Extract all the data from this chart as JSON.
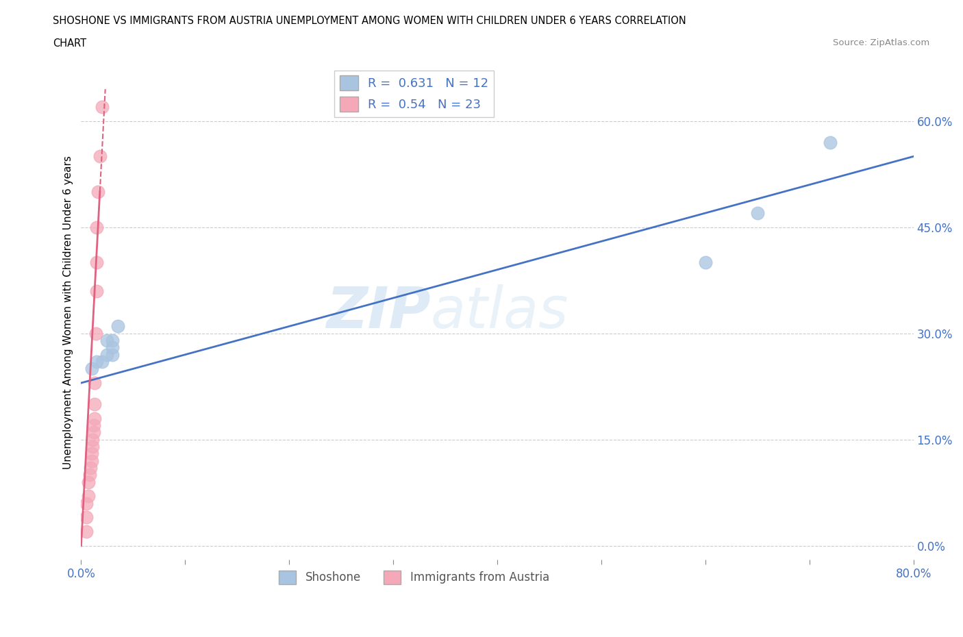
{
  "title_line1": "SHOSHONE VS IMMIGRANTS FROM AUSTRIA UNEMPLOYMENT AMONG WOMEN WITH CHILDREN UNDER 6 YEARS CORRELATION",
  "title_line2": "CHART",
  "source_text": "Source: ZipAtlas.com",
  "ylabel": "Unemployment Among Women with Children Under 6 years",
  "xlim": [
    0.0,
    0.8
  ],
  "ylim": [
    -0.02,
    0.68
  ],
  "xticks": [
    0.0,
    0.1,
    0.2,
    0.3,
    0.4,
    0.5,
    0.6,
    0.7,
    0.8
  ],
  "xtick_labels": [
    "0.0%",
    "",
    "",
    "",
    "",
    "",
    "",
    "",
    "80.0%"
  ],
  "ytick_positions_right": [
    0.0,
    0.15,
    0.3,
    0.45,
    0.6
  ],
  "shoshone_R": 0.631,
  "shoshone_N": 12,
  "austria_R": 0.54,
  "austria_N": 23,
  "shoshone_color": "#a8c4e0",
  "austria_color": "#f4a8b8",
  "shoshone_line_color": "#4472c4",
  "austria_line_color": "#e06080",
  "watermark_text": "ZIP",
  "watermark_text2": "atlas",
  "shoshone_x": [
    0.01,
    0.015,
    0.02,
    0.025,
    0.025,
    0.03,
    0.03,
    0.03,
    0.035,
    0.6,
    0.65,
    0.72
  ],
  "shoshone_y": [
    0.25,
    0.26,
    0.26,
    0.27,
    0.29,
    0.27,
    0.28,
    0.29,
    0.31,
    0.4,
    0.47,
    0.57
  ],
  "austria_x": [
    0.005,
    0.005,
    0.005,
    0.007,
    0.007,
    0.008,
    0.009,
    0.01,
    0.01,
    0.011,
    0.011,
    0.012,
    0.012,
    0.013,
    0.013,
    0.013,
    0.014,
    0.015,
    0.015,
    0.015,
    0.016,
    0.018,
    0.02
  ],
  "austria_y": [
    0.02,
    0.04,
    0.06,
    0.07,
    0.09,
    0.1,
    0.11,
    0.12,
    0.13,
    0.14,
    0.15,
    0.16,
    0.17,
    0.18,
    0.2,
    0.23,
    0.3,
    0.36,
    0.4,
    0.45,
    0.5,
    0.55,
    0.62
  ],
  "shoshone_trend_x0": 0.0,
  "shoshone_trend_y0": 0.23,
  "shoshone_trend_x1": 0.8,
  "shoshone_trend_y1": 0.55,
  "austria_trend_x0": 0.0,
  "austria_trend_y0": 0.0,
  "austria_trend_x1": 0.018,
  "austria_trend_y1": 0.5,
  "legend_shoshone_label": "Shoshone",
  "legend_austria_label": "Immigrants from Austria"
}
